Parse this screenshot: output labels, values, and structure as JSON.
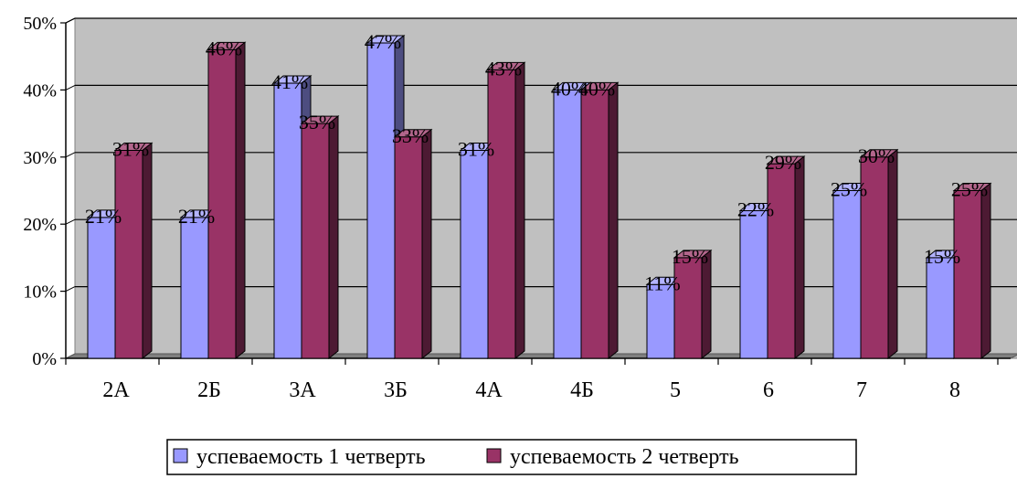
{
  "chart_data": {
    "type": "bar",
    "categories": [
      "2А",
      "2Б",
      "3А",
      "3Б",
      "4А",
      "4Б",
      "5",
      "6",
      "7",
      "8"
    ],
    "series": [
      {
        "name": "успеваемость 1 четверть",
        "values": [
          21,
          21,
          41,
          47,
          31,
          40,
          11,
          22,
          25,
          15
        ],
        "labels": [
          "21%",
          "21%",
          "41%",
          "47%",
          "31%",
          "40%",
          "11%",
          "22%",
          "25%",
          "15%"
        ],
        "color": "#9999ff"
      },
      {
        "name": "успеваемость 2 четверть",
        "values": [
          31,
          46,
          35,
          33,
          43,
          40,
          15,
          29,
          30,
          25
        ],
        "labels": [
          "31%",
          "46%",
          "35%",
          "33%",
          "43%",
          "40%",
          "15%",
          "29%",
          "30%",
          "25%"
        ],
        "color": "#993366"
      }
    ],
    "yticks": [
      "0%",
      "10%",
      "20%",
      "30%",
      "40%",
      "50%"
    ],
    "ylim": [
      0,
      50
    ],
    "unit": "%",
    "gridlines": true,
    "three_d": true,
    "plot_background": "#c0c0c0",
    "legend_position": "bottom"
  }
}
